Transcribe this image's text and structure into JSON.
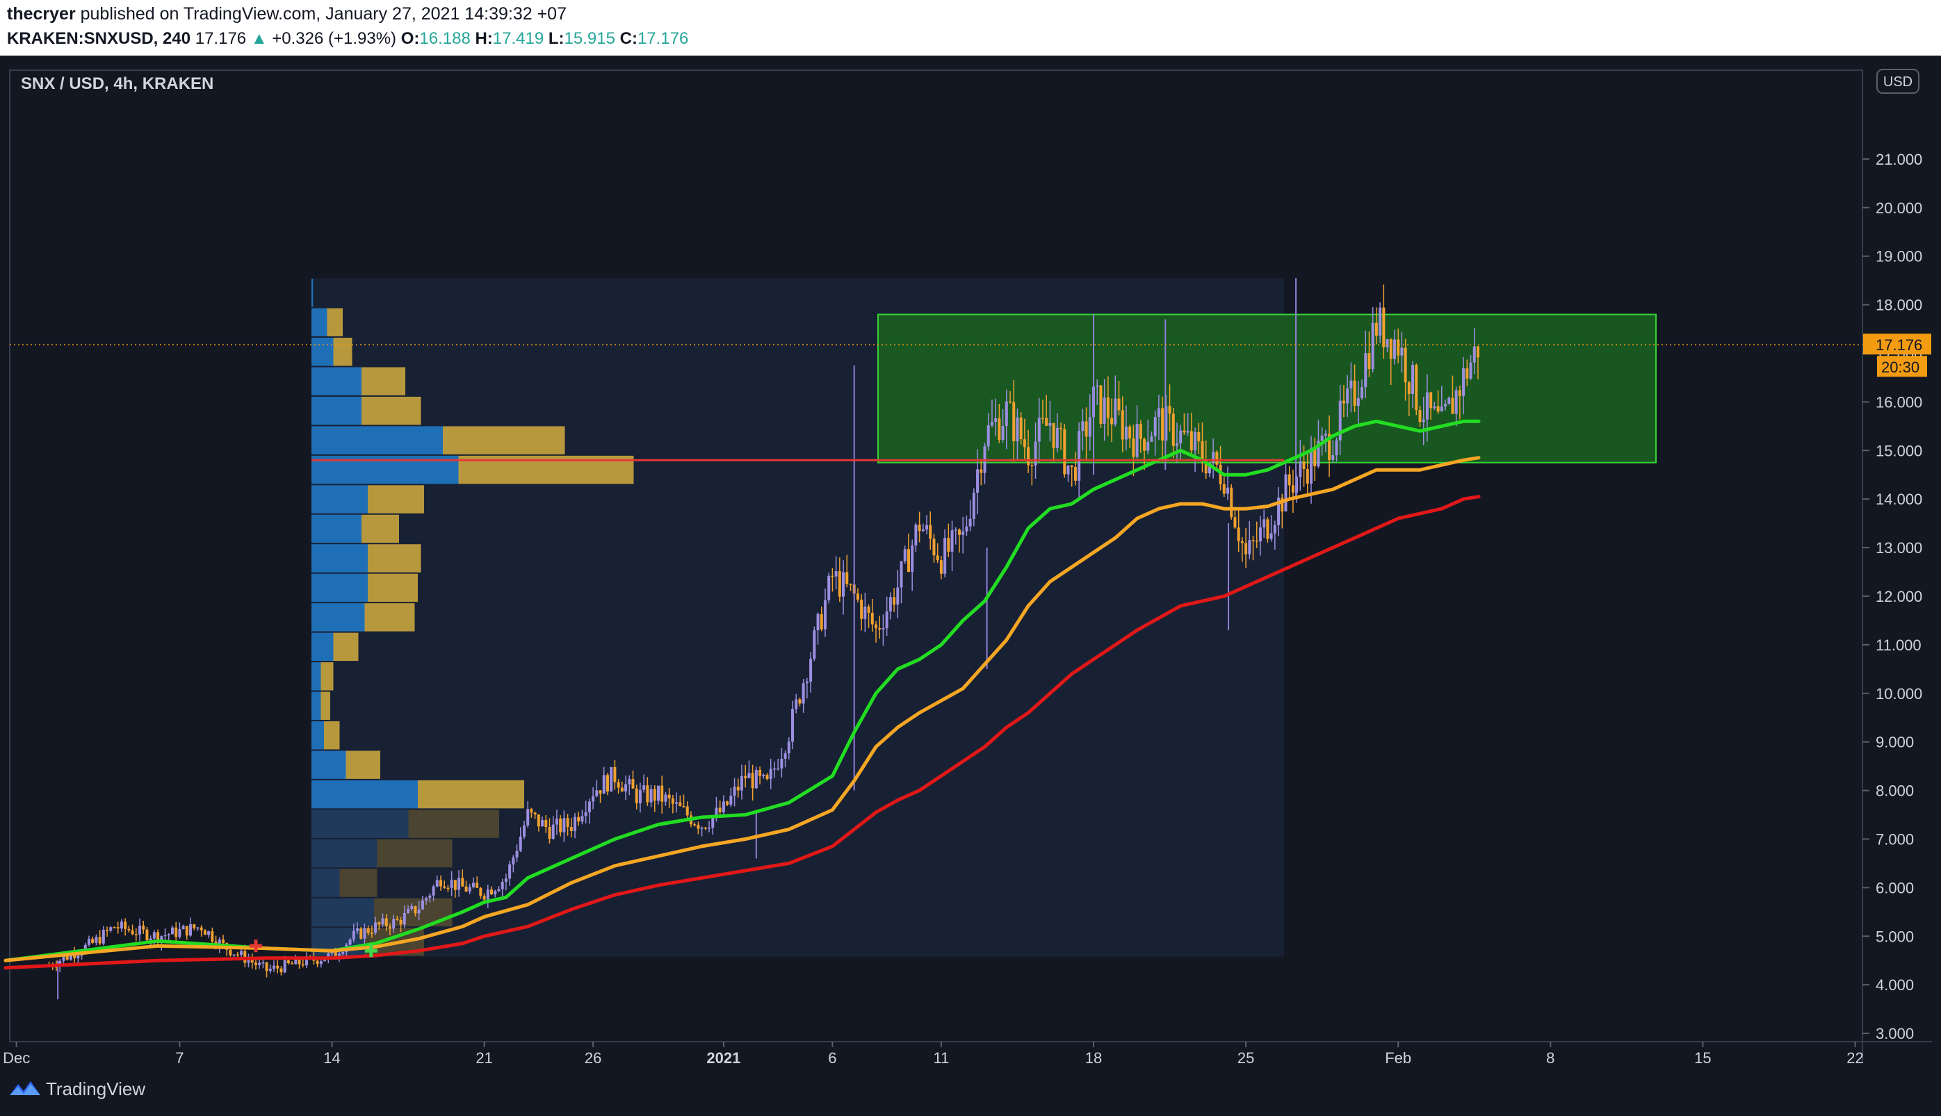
{
  "header": {
    "author": "thecryer",
    "published_text": "published on TradingView.com, January 27, 2021 14:39:32 +07",
    "symbol": "KRAKEN:SNXUSD, 240",
    "price": "17.176",
    "change": "+0.326 (+1.93%)",
    "o_label": "O:",
    "o_value": "16.188",
    "h_label": "H:",
    "h_value": "17.419",
    "l_label": "L:",
    "l_value": "15.915",
    "c_label": "C:",
    "c_value": "17.176"
  },
  "footer": {
    "brand": "TradingView"
  },
  "colors": {
    "background": "#131722",
    "candle_up": "#9c8fe0",
    "candle_down": "#f0a030",
    "ema_fast": "#22dd22",
    "ema_mid": "#f5a623",
    "ema_slow": "#e01818",
    "zone_fill": "#1b5e20",
    "zone_border": "#36d336",
    "level_line": "#e53935",
    "vp_blue": "#1f6fb7",
    "vp_gold": "#b8983d",
    "last_price": "#f39c12"
  },
  "chart_data": {
    "type": "candlestick",
    "title": "SNX / USD, 4h, KRAKEN",
    "currency": "USD",
    "ylim": [
      2.5,
      22.5
    ],
    "y_ticks": [
      "3.000",
      "4.000",
      "5.000",
      "6.000",
      "7.000",
      "8.000",
      "9.000",
      "10.000",
      "11.000",
      "12.000",
      "13.000",
      "14.000",
      "15.000",
      "16.000",
      "17.000",
      "18.000",
      "19.000",
      "20.000",
      "21.000"
    ],
    "x_range_days": [
      -2,
      53
    ],
    "x_ticks": [
      {
        "label": "Dec",
        "day": -1.5
      },
      {
        "label": "7",
        "day": 6
      },
      {
        "label": "14",
        "day": 13
      },
      {
        "label": "21",
        "day": 20
      },
      {
        "label": "26",
        "day": 25
      },
      {
        "label": "2021",
        "day": 31
      },
      {
        "label": "6",
        "day": 36
      },
      {
        "label": "11",
        "day": 41
      },
      {
        "label": "18",
        "day": 48
      },
      {
        "label": "25",
        "day": 55
      },
      {
        "label": "Feb",
        "day": 62
      },
      {
        "label": "8",
        "day": 69
      },
      {
        "label": "15",
        "day": 76
      },
      {
        "label": "22",
        "day": 83
      }
    ],
    "last_price": 17.176,
    "last_price_label": "17.176",
    "countdown": "20:30",
    "candles": [],
    "price_path": [
      [
        0,
        4.4
      ],
      [
        2,
        4.85
      ],
      [
        3,
        5.2
      ],
      [
        5,
        5.0
      ],
      [
        7,
        5.2
      ],
      [
        8,
        4.8
      ],
      [
        9,
        4.55
      ],
      [
        10,
        4.3
      ],
      [
        11,
        4.4
      ],
      [
        12,
        4.5
      ],
      [
        13,
        4.6
      ],
      [
        14,
        5.0
      ],
      [
        15,
        5.2
      ],
      [
        16,
        5.3
      ],
      [
        17,
        5.6
      ],
      [
        18,
        6.2
      ],
      [
        19,
        6.0
      ],
      [
        20,
        5.9
      ],
      [
        21,
        6.2
      ],
      [
        22,
        7.5
      ],
      [
        23,
        7.2
      ],
      [
        24,
        7.3
      ],
      [
        25,
        8.0
      ],
      [
        26,
        8.3
      ],
      [
        27,
        7.9
      ],
      [
        28,
        7.9
      ],
      [
        29,
        7.6
      ],
      [
        30,
        7.3
      ],
      [
        31,
        7.6
      ],
      [
        32,
        8.3
      ],
      [
        33,
        8.1
      ],
      [
        34,
        9.2
      ],
      [
        35,
        10.8
      ],
      [
        36,
        12.4
      ],
      [
        37,
        12.0
      ],
      [
        38,
        11.3
      ],
      [
        39,
        12.2
      ],
      [
        40,
        13.5
      ],
      [
        41,
        12.8
      ],
      [
        42,
        13.2
      ],
      [
        43,
        15.3
      ],
      [
        44,
        15.8
      ],
      [
        45,
        15.0
      ],
      [
        46,
        15.6
      ],
      [
        47,
        14.5
      ],
      [
        48,
        16.0
      ],
      [
        49,
        15.7
      ],
      [
        50,
        15.2
      ],
      [
        51,
        15.6
      ],
      [
        52,
        15.3
      ],
      [
        53,
        14.9
      ],
      [
        54,
        14.5
      ],
      [
        55,
        12.8
      ],
      [
        56,
        13.5
      ],
      [
        57,
        14.3
      ],
      [
        58,
        14.8
      ],
      [
        59,
        15.3
      ],
      [
        60,
        16.2
      ],
      [
        61,
        17.6
      ],
      [
        62,
        17.2
      ],
      [
        63,
        15.9
      ],
      [
        64,
        15.5
      ],
      [
        65,
        16.5
      ],
      [
        65.7,
        17.176
      ]
    ],
    "spikes": [
      {
        "day": 37.0,
        "low": 8.0,
        "high": 16.75
      },
      {
        "day": 57.3,
        "low": 14.0,
        "high": 18.55
      },
      {
        "day": 54.2,
        "low": 11.3,
        "high": 13.5
      },
      {
        "day": 48.0,
        "low": 14.5,
        "high": 17.8
      },
      {
        "day": 51.3,
        "low": 14.6,
        "high": 17.7
      },
      {
        "day": 0.4,
        "low": 3.7,
        "high": 4.5
      },
      {
        "day": 43.1,
        "low": 10.5,
        "high": 13.0
      },
      {
        "day": 32.5,
        "low": 6.6,
        "high": 7.6
      }
    ],
    "series": [
      {
        "name": "",
        "color": "#22dd22",
        "points": [
          [
            -2,
            4.5
          ],
          [
            5,
            4.9
          ],
          [
            10,
            4.75
          ],
          [
            13,
            4.7
          ],
          [
            15,
            4.85
          ],
          [
            17,
            5.15
          ],
          [
            19,
            5.5
          ],
          [
            20,
            5.7
          ],
          [
            21,
            5.8
          ],
          [
            22,
            6.2
          ],
          [
            24,
            6.6
          ],
          [
            26,
            7.0
          ],
          [
            28,
            7.3
          ],
          [
            30,
            7.45
          ],
          [
            32,
            7.5
          ],
          [
            34,
            7.75
          ],
          [
            36,
            8.3
          ],
          [
            37,
            9.2
          ],
          [
            38,
            10.0
          ],
          [
            39,
            10.5
          ],
          [
            40,
            10.7
          ],
          [
            41,
            11.0
          ],
          [
            42,
            11.5
          ],
          [
            43,
            11.9
          ],
          [
            44,
            12.6
          ],
          [
            45,
            13.4
          ],
          [
            46,
            13.8
          ],
          [
            47,
            13.9
          ],
          [
            48,
            14.2
          ],
          [
            49,
            14.4
          ],
          [
            50,
            14.6
          ],
          [
            51,
            14.8
          ],
          [
            52,
            15.0
          ],
          [
            53,
            14.8
          ],
          [
            54,
            14.5
          ],
          [
            55,
            14.5
          ],
          [
            56,
            14.6
          ],
          [
            57,
            14.8
          ],
          [
            58,
            15.0
          ],
          [
            59,
            15.3
          ],
          [
            60,
            15.5
          ],
          [
            61,
            15.6
          ],
          [
            62,
            15.5
          ],
          [
            63,
            15.4
          ],
          [
            64,
            15.5
          ],
          [
            65,
            15.6
          ],
          [
            65.7,
            15.6
          ]
        ]
      },
      {
        "name": "",
        "color": "#f5a623",
        "points": [
          [
            -2,
            4.5
          ],
          [
            5,
            4.8
          ],
          [
            10,
            4.75
          ],
          [
            13,
            4.7
          ],
          [
            15,
            4.78
          ],
          [
            17,
            4.95
          ],
          [
            19,
            5.2
          ],
          [
            20,
            5.4
          ],
          [
            22,
            5.65
          ],
          [
            24,
            6.1
          ],
          [
            26,
            6.45
          ],
          [
            28,
            6.65
          ],
          [
            30,
            6.85
          ],
          [
            32,
            7.0
          ],
          [
            34,
            7.2
          ],
          [
            36,
            7.6
          ],
          [
            37,
            8.2
          ],
          [
            38,
            8.9
          ],
          [
            39,
            9.3
          ],
          [
            40,
            9.6
          ],
          [
            42,
            10.1
          ],
          [
            43,
            10.6
          ],
          [
            44,
            11.1
          ],
          [
            45,
            11.8
          ],
          [
            46,
            12.3
          ],
          [
            47,
            12.6
          ],
          [
            48,
            12.9
          ],
          [
            49,
            13.2
          ],
          [
            50,
            13.6
          ],
          [
            51,
            13.8
          ],
          [
            52,
            13.9
          ],
          [
            53,
            13.9
          ],
          [
            54,
            13.8
          ],
          [
            55,
            13.8
          ],
          [
            56,
            13.85
          ],
          [
            57,
            14.0
          ],
          [
            58,
            14.1
          ],
          [
            59,
            14.2
          ],
          [
            60,
            14.4
          ],
          [
            61,
            14.6
          ],
          [
            62,
            14.6
          ],
          [
            63,
            14.6
          ],
          [
            64,
            14.7
          ],
          [
            65,
            14.8
          ],
          [
            65.7,
            14.85
          ]
        ]
      },
      {
        "name": "",
        "color": "#e01818",
        "points": [
          [
            -2,
            4.35
          ],
          [
            5,
            4.5
          ],
          [
            10,
            4.55
          ],
          [
            13,
            4.55
          ],
          [
            15,
            4.6
          ],
          [
            17,
            4.7
          ],
          [
            19,
            4.85
          ],
          [
            20,
            5.0
          ],
          [
            22,
            5.2
          ],
          [
            24,
            5.55
          ],
          [
            26,
            5.85
          ],
          [
            28,
            6.05
          ],
          [
            30,
            6.2
          ],
          [
            32,
            6.35
          ],
          [
            34,
            6.5
          ],
          [
            36,
            6.85
          ],
          [
            37,
            7.2
          ],
          [
            38,
            7.55
          ],
          [
            39,
            7.8
          ],
          [
            40,
            8.0
          ],
          [
            41,
            8.3
          ],
          [
            42,
            8.6
          ],
          [
            43,
            8.9
          ],
          [
            44,
            9.3
          ],
          [
            45,
            9.6
          ],
          [
            46,
            10.0
          ],
          [
            47,
            10.4
          ],
          [
            48,
            10.7
          ],
          [
            49,
            11.0
          ],
          [
            50,
            11.3
          ],
          [
            51,
            11.55
          ],
          [
            52,
            11.8
          ],
          [
            53,
            11.9
          ],
          [
            54,
            12.0
          ],
          [
            55,
            12.2
          ],
          [
            56,
            12.4
          ],
          [
            57,
            12.6
          ],
          [
            58,
            12.8
          ],
          [
            59,
            13.0
          ],
          [
            60,
            13.2
          ],
          [
            61,
            13.4
          ],
          [
            62,
            13.6
          ],
          [
            63,
            13.7
          ],
          [
            64,
            13.8
          ],
          [
            65,
            14.0
          ],
          [
            65.7,
            14.05
          ]
        ]
      }
    ],
    "zone": {
      "x_start_day": 39.2,
      "x_end_day": 75.4,
      "y_low": 14.75,
      "y_high": 17.8
    },
    "level": {
      "x_start_day": 13,
      "x_end_day": 65.7,
      "y": 14.8
    },
    "volume_profile": {
      "x_start_day": 13,
      "x_end_day": 65.7,
      "y_low": 4.58,
      "y_high": 18.55,
      "rows": [
        {
          "blue": 0.05,
          "gold": 0.0
        },
        {
          "blue": 0.5,
          "gold": 0.5
        },
        {
          "blue": 0.7,
          "gold": 0.6
        },
        {
          "blue": 1.6,
          "gold": 1.4
        },
        {
          "blue": 1.6,
          "gold": 1.9
        },
        {
          "blue": 4.2,
          "gold": 3.9
        },
        {
          "blue": 4.7,
          "gold": 5.6
        },
        {
          "blue": 1.8,
          "gold": 1.8
        },
        {
          "blue": 1.6,
          "gold": 1.2
        },
        {
          "blue": 1.8,
          "gold": 1.7
        },
        {
          "blue": 1.8,
          "gold": 1.6
        },
        {
          "blue": 1.7,
          "gold": 1.6
        },
        {
          "blue": 0.7,
          "gold": 0.8
        },
        {
          "blue": 0.3,
          "gold": 0.4
        },
        {
          "blue": 0.3,
          "gold": 0.3
        },
        {
          "blue": 0.4,
          "gold": 0.5
        },
        {
          "blue": 1.1,
          "gold": 1.1
        },
        {
          "blue": 3.4,
          "gold": 3.4
        },
        {
          "blue": 3.1,
          "gold": 2.9
        },
        {
          "blue": 2.1,
          "gold": 2.4
        },
        {
          "blue": 0.9,
          "gold": 1.2
        },
        {
          "blue": 2.0,
          "gold": 2.5
        },
        {
          "blue": 1.7,
          "gold": 1.9
        }
      ]
    },
    "signals": [
      {
        "day": 9.5,
        "value": 4.8,
        "type": "sell",
        "color": "#e53935"
      },
      {
        "day": 14.8,
        "value": 4.7,
        "type": "buy",
        "color": "#43d64a"
      }
    ]
  }
}
